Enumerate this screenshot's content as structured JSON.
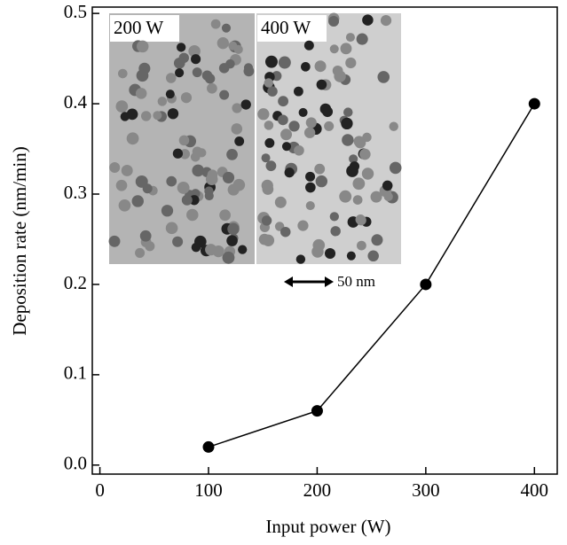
{
  "chart_data": {
    "type": "line",
    "x_label": "Input power (W)",
    "y_label": "Deposition rate (nm/min)",
    "x": [
      100,
      200,
      300,
      400
    ],
    "series": [
      {
        "color": "#000000",
        "values": [
          0.02,
          0.06,
          0.2,
          0.4
        ]
      }
    ],
    "xlim": [
      -7,
      421
    ],
    "ylim": [
      -0.01,
      0.507
    ],
    "xticks": [
      0,
      100,
      200,
      300,
      400
    ],
    "yticks": [
      {
        "value": 0,
        "label": "0.0"
      },
      0.1,
      0.2,
      0.3,
      0.4,
      0.5
    ],
    "inset_labels": [
      "200 W",
      "400 W"
    ],
    "scale_bar_label": "50 nm"
  }
}
